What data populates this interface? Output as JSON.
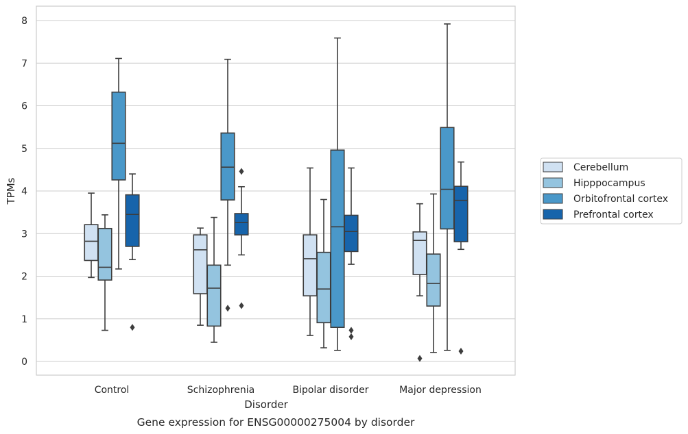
{
  "caption": "Gene expression for ENSG00000275004 by disorder",
  "chart_data": {
    "type": "box",
    "title": "",
    "xlabel": "Disorder",
    "ylabel": "TPMs",
    "ylim": [
      -0.3,
      8.3
    ],
    "yticks": [
      0,
      1,
      2,
      3,
      4,
      5,
      6,
      7,
      8
    ],
    "grid": "horizontal",
    "legend_position": "right",
    "categories": [
      "Control",
      "Schizophrenia",
      "Bipolar disorder",
      "Major depression"
    ],
    "series": [
      {
        "name": "Cerebellum",
        "color": "#d0e1f2",
        "boxes": [
          {
            "whislo": 1.97,
            "q1": 2.37,
            "med": 2.82,
            "q3": 3.21,
            "whishi": 3.95,
            "fliers": []
          },
          {
            "whislo": 0.85,
            "q1": 1.59,
            "med": 2.62,
            "q3": 2.97,
            "whishi": 3.13,
            "fliers": []
          },
          {
            "whislo": 0.61,
            "q1": 1.54,
            "med": 2.41,
            "q3": 2.97,
            "whishi": 4.54,
            "fliers": []
          },
          {
            "whislo": 1.54,
            "q1": 2.04,
            "med": 2.84,
            "q3": 3.04,
            "whishi": 3.7,
            "fliers": [
              0.07
            ]
          }
        ]
      },
      {
        "name": "Hipppocampus",
        "color": "#94c4df",
        "boxes": [
          {
            "whislo": 0.73,
            "q1": 1.91,
            "med": 2.21,
            "q3": 3.12,
            "whishi": 3.44,
            "fliers": []
          },
          {
            "whislo": 0.45,
            "q1": 0.83,
            "med": 1.72,
            "q3": 2.26,
            "whishi": 3.38,
            "fliers": []
          },
          {
            "whislo": 0.32,
            "q1": 0.91,
            "med": 1.7,
            "q3": 2.56,
            "whishi": 3.8,
            "fliers": []
          },
          {
            "whislo": 0.21,
            "q1": 1.3,
            "med": 1.83,
            "q3": 2.52,
            "whishi": 3.93,
            "fliers": []
          }
        ]
      },
      {
        "name": "Orbitofrontal cortex",
        "color": "#4a98c9",
        "boxes": [
          {
            "whislo": 2.17,
            "q1": 4.26,
            "med": 5.12,
            "q3": 6.32,
            "whishi": 7.11,
            "fliers": []
          },
          {
            "whislo": 2.26,
            "q1": 3.79,
            "med": 4.56,
            "q3": 5.36,
            "whishi": 7.09,
            "fliers": [
              1.25
            ]
          },
          {
            "whislo": 0.26,
            "q1": 0.8,
            "med": 3.16,
            "q3": 4.96,
            "whishi": 7.59,
            "fliers": []
          },
          {
            "whislo": 0.26,
            "q1": 3.11,
            "med": 4.04,
            "q3": 5.49,
            "whishi": 7.92,
            "fliers": []
          }
        ]
      },
      {
        "name": "Prefrontal cortex",
        "color": "#1764ab",
        "boxes": [
          {
            "whislo": 2.39,
            "q1": 2.7,
            "med": 3.45,
            "q3": 3.91,
            "whishi": 4.4,
            "fliers": [
              0.8
            ]
          },
          {
            "whislo": 2.5,
            "q1": 2.97,
            "med": 3.26,
            "q3": 3.47,
            "whishi": 4.1,
            "fliers": [
              4.46,
              1.31
            ]
          },
          {
            "whislo": 2.28,
            "q1": 2.58,
            "med": 3.05,
            "q3": 3.43,
            "whishi": 4.54,
            "fliers": [
              0.73,
              0.58
            ]
          },
          {
            "whislo": 2.63,
            "q1": 2.81,
            "med": 3.78,
            "q3": 4.11,
            "whishi": 4.68,
            "fliers": [
              0.24
            ]
          }
        ]
      }
    ]
  }
}
